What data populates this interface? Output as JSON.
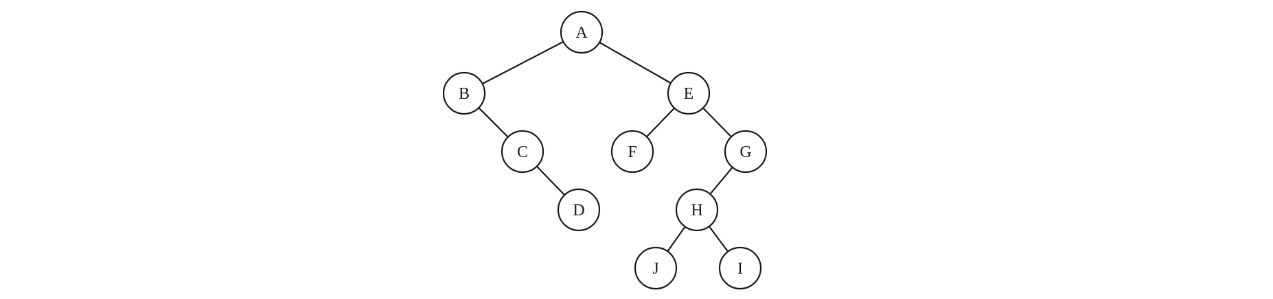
{
  "diagram": {
    "type": "binary-tree",
    "nodes": [
      {
        "id": "A",
        "label": "A"
      },
      {
        "id": "B",
        "label": "B"
      },
      {
        "id": "C",
        "label": "C"
      },
      {
        "id": "D",
        "label": "D"
      },
      {
        "id": "E",
        "label": "E"
      },
      {
        "id": "F",
        "label": "F"
      },
      {
        "id": "G",
        "label": "G"
      },
      {
        "id": "H",
        "label": "H"
      },
      {
        "id": "J",
        "label": "J"
      },
      {
        "id": "I",
        "label": "I"
      }
    ],
    "edges": [
      {
        "from": "A",
        "to": "B",
        "side": "left"
      },
      {
        "from": "A",
        "to": "E",
        "side": "right"
      },
      {
        "from": "B",
        "to": "C",
        "side": "right"
      },
      {
        "from": "C",
        "to": "D",
        "side": "right"
      },
      {
        "from": "E",
        "to": "F",
        "side": "left"
      },
      {
        "from": "E",
        "to": "G",
        "side": "right"
      },
      {
        "from": "G",
        "to": "H",
        "side": "left"
      },
      {
        "from": "H",
        "to": "J",
        "side": "left"
      },
      {
        "from": "H",
        "to": "I",
        "side": "right"
      }
    ]
  },
  "colors": {
    "stroke": "#1a1a1a",
    "node_fill": "#ffffff",
    "background": "#ffffff"
  }
}
